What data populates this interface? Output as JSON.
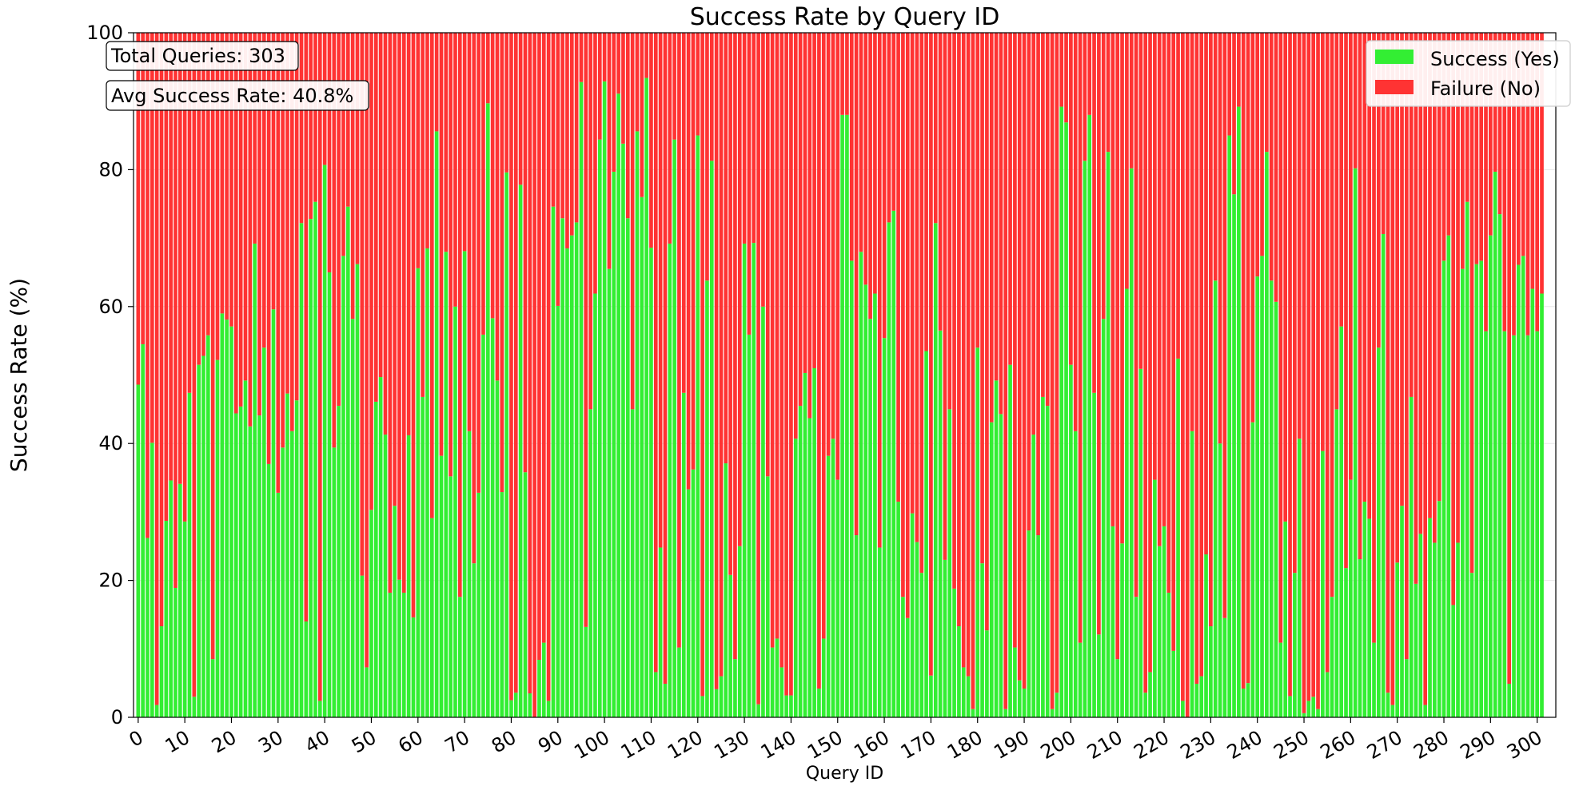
{
  "chart_data": {
    "type": "bar",
    "stacked": true,
    "title": "Success Rate by Query ID",
    "xlabel": "Query ID",
    "ylabel": "Success Rate (%)",
    "ylim": [
      0,
      100
    ],
    "xlim": [
      -1,
      304
    ],
    "yticks": [
      0,
      20,
      40,
      60,
      80,
      100
    ],
    "xticks": [
      0,
      10,
      20,
      30,
      40,
      50,
      60,
      70,
      80,
      90,
      100,
      110,
      120,
      130,
      140,
      150,
      160,
      170,
      180,
      190,
      200,
      210,
      220,
      230,
      240,
      250,
      260,
      270,
      280,
      290,
      300
    ],
    "grid": "horizontal",
    "legend_position": "top-right",
    "colors": {
      "success": "#33ee33",
      "failure": "#ff3333"
    },
    "series": [
      {
        "name": "Success (Yes)",
        "values": [
          48.6,
          54.5,
          26.2,
          40.1,
          1.8,
          13.3,
          28.7,
          34.6,
          18.9,
          34.1,
          28.6,
          47.4,
          3.0,
          51.5,
          52.8,
          55.8,
          8.5,
          52.2,
          59.0,
          58.1,
          57.1,
          44.4,
          45.4,
          49.2,
          42.5,
          69.2,
          44.1,
          54.0,
          37.0,
          59.6,
          32.8,
          39.4,
          47.3,
          41.8,
          46.3,
          72.2,
          14.0,
          72.8,
          75.3,
          2.4,
          80.7,
          65.0,
          39.4,
          45.5,
          67.4,
          74.6,
          58.2,
          66.2,
          20.7,
          7.3,
          30.3,
          46.1,
          49.7,
          41.3,
          18.2,
          30.9,
          20.1,
          18.2,
          41.2,
          14.6,
          65.6,
          46.8,
          68.5,
          29.1,
          85.6,
          38.2,
          68.0,
          35.2,
          60.0,
          17.6,
          68.1,
          41.8,
          22.5,
          32.8,
          55.9,
          89.7,
          58.3,
          49.2,
          32.9,
          79.6,
          2.5,
          3.6,
          77.8,
          35.8,
          3.5,
          0.0,
          8.4,
          10.9,
          2.4,
          74.6,
          60.1,
          72.9,
          68.5,
          70.4,
          72.3,
          92.8,
          13.2,
          45.0,
          61.9,
          84.4,
          92.9,
          65.5,
          79.7,
          91.1,
          83.8,
          72.9,
          45.0,
          85.6,
          76.0,
          93.4,
          68.6,
          6.6,
          24.8,
          4.9,
          69.2,
          84.4,
          10.2,
          47.4,
          33.3,
          36.2,
          85.0,
          3.1,
          63.8,
          81.3,
          4.1,
          6.0,
          37.1,
          20.8,
          8.5,
          25.0,
          69.2,
          55.9,
          69.3,
          1.9,
          60.0,
          35.2,
          10.2,
          11.5,
          7.3,
          3.2,
          3.2,
          40.7,
          45.5,
          50.3,
          43.7,
          51.0,
          4.2,
          11.5,
          38.2,
          40.7,
          34.7,
          88.0,
          88.0,
          66.7,
          26.6,
          68.0,
          63.2,
          58.2,
          61.9,
          24.8,
          55.4,
          72.3,
          74.0,
          31.5,
          17.6,
          14.5,
          29.8,
          25.6,
          21.1,
          53.5,
          6.1,
          72.2,
          56.5,
          23.0,
          45.0,
          18.8,
          13.3,
          7.3,
          6.0,
          1.2,
          54.0,
          22.5,
          12.7,
          43.1,
          49.2,
          44.3,
          1.2,
          51.5,
          10.2,
          5.4,
          4.2,
          27.3,
          41.3,
          26.6,
          46.8,
          45.5,
          1.2,
          3.6,
          89.2,
          86.9,
          51.5,
          41.8,
          10.9,
          81.3,
          88.0,
          47.4,
          12.1,
          58.2,
          82.6,
          27.9,
          8.5,
          25.4,
          62.6,
          80.2,
          17.6,
          50.9,
          3.6,
          6.6,
          34.7,
          25.0,
          27.9,
          18.2,
          9.7,
          52.4,
          2.4,
          0.0,
          41.8,
          4.9,
          6.0,
          23.8,
          13.3,
          63.8,
          40.0,
          14.5,
          85.0,
          76.4,
          89.2,
          4.2,
          5.0,
          43.1,
          64.4,
          67.4,
          82.6,
          63.8,
          60.7,
          10.9,
          28.6,
          3.1,
          21.1,
          40.7,
          0.6,
          2.4,
          3.0,
          1.2,
          38.9,
          6.6,
          17.6,
          45.0,
          57.1,
          21.8,
          34.7,
          80.2,
          23.1,
          31.5,
          29.0,
          10.9,
          54.0,
          70.6,
          3.6,
          1.8,
          22.6,
          30.9,
          8.5,
          46.8,
          19.5,
          26.8,
          1.8,
          29.1,
          25.5,
          31.6,
          66.7,
          70.4,
          16.4,
          25.5,
          65.5,
          75.3,
          21.1,
          66.2,
          66.7,
          56.4,
          70.4,
          79.7,
          73.5,
          56.4,
          4.9,
          55.8,
          66.1,
          67.4,
          55.8,
          62.6,
          56.4,
          61.9
        ]
      },
      {
        "name": "Failure (No)",
        "values": "100 minus success"
      }
    ]
  },
  "annotations": {
    "total": "Total Queries: 303",
    "avg": "Avg Success Rate: 40.8%"
  }
}
